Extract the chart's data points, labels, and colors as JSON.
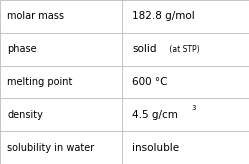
{
  "rows": [
    {
      "label": "molar mass",
      "value": "182.8 g/mol",
      "value_suffix": null,
      "superscript": null
    },
    {
      "label": "phase",
      "value": "solid",
      "value_suffix": " (at STP)",
      "superscript": null
    },
    {
      "label": "melting point",
      "value": "600 °C",
      "value_suffix": null,
      "superscript": null
    },
    {
      "label": "density",
      "value": "4.5 g/cm",
      "value_suffix": null,
      "superscript": "3"
    },
    {
      "label": "solubility in water",
      "value": "insoluble",
      "value_suffix": null,
      "superscript": null
    }
  ],
  "col_split": 0.49,
  "background": "#ffffff",
  "border_color": "#bbbbbb",
  "text_color": "#000000",
  "label_fontsize": 7.0,
  "value_fontsize": 7.5,
  "suffix_fontsize": 5.5,
  "super_fontsize": 5.0,
  "font_family": "DejaVu Sans"
}
